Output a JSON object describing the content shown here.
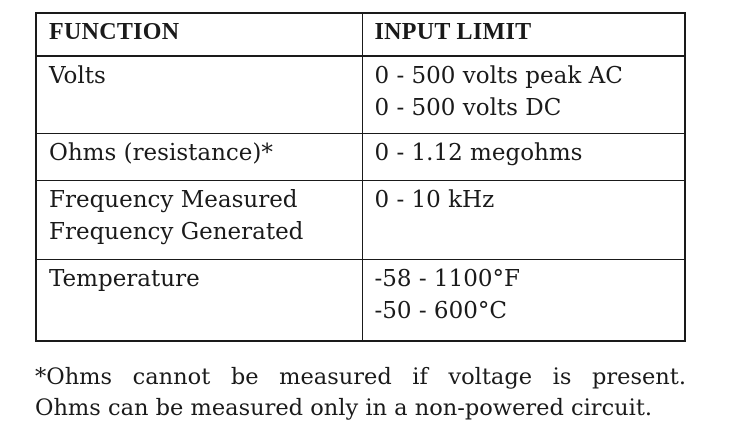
{
  "table": {
    "headers": {
      "function": "FUNCTION",
      "input_limit": "INPUT LIMIT"
    },
    "rows": [
      {
        "function": [
          "Volts"
        ],
        "input_limit": [
          "0 - 500 volts peak AC",
          "0 - 500 volts DC"
        ]
      },
      {
        "function": [
          "Ohms (resistance)*"
        ],
        "input_limit": [
          "0 - 1.12 megohms"
        ]
      },
      {
        "function": [
          "Frequency Measured",
          "Frequency Generated"
        ],
        "input_limit": [
          "0 - 10 kHz"
        ]
      },
      {
        "function": [
          "Temperature"
        ],
        "input_limit": [
          "-58 - 1100°F",
          "-50 - 600°C"
        ]
      }
    ]
  },
  "footnote": {
    "line1": "*Ohms cannot be measured if voltage is present.",
    "line2": "Ohms can be measured only in a non-powered circuit."
  }
}
